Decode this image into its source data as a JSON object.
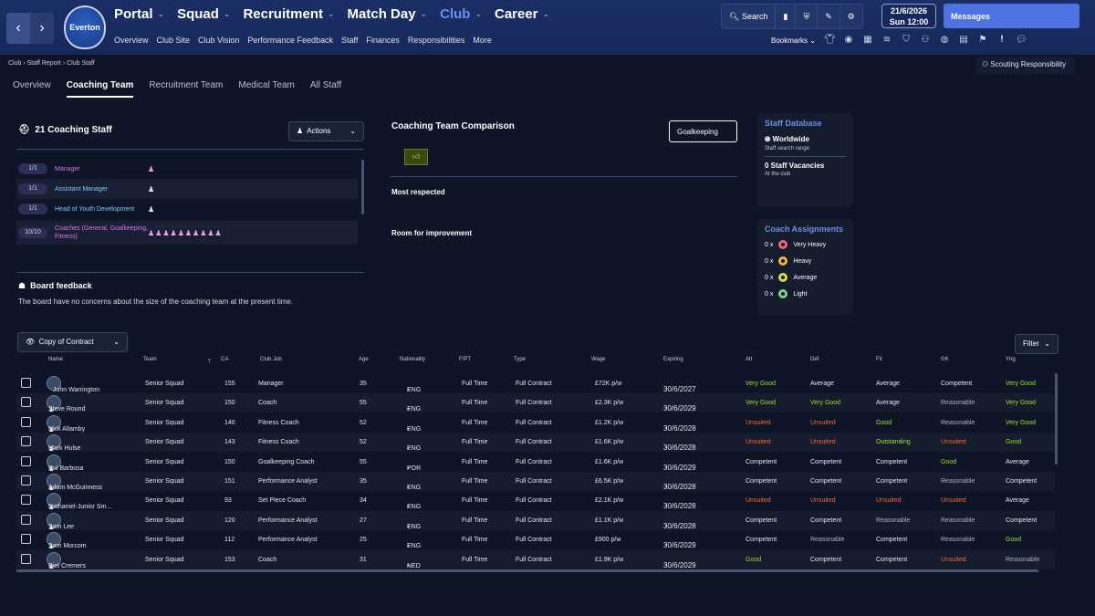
{
  "nav": {
    "back": "‹",
    "forward": "›",
    "club_crest_text": "Everton",
    "main": [
      {
        "label": "Portal",
        "active": false
      },
      {
        "label": "Squad",
        "active": false
      },
      {
        "label": "Recruitment",
        "active": false
      },
      {
        "label": "Match Day",
        "active": false
      },
      {
        "label": "Club",
        "active": true
      },
      {
        "label": "Career",
        "active": false
      }
    ],
    "sub": [
      "Overview",
      "Club Site",
      "Club Vision",
      "Performance Feedback",
      "Staff",
      "Finances",
      "Responsibilities",
      "More"
    ],
    "search_label": "Search",
    "date": "21/6/2026",
    "day": "Sun",
    "time": "12:00",
    "messages_label": "Messages",
    "bookmarks_label": "Bookmarks"
  },
  "breadcrumbs": [
    "Club",
    "Staff Report",
    "Club Staff"
  ],
  "scouting_responsibility": "Scouting Responsibility",
  "tabs": [
    "Overview",
    "Coaching Team",
    "Recruitment Team",
    "Medical Team",
    "All Staff"
  ],
  "active_tab": "Coaching Team",
  "coaching": {
    "title": "21 Coaching Staff",
    "actions_label": "Actions",
    "roles": [
      {
        "count": "1/1",
        "name": "Manager",
        "icons": "♟"
      },
      {
        "count": "1/1",
        "name": "Assistant Manager",
        "icons": "♟"
      },
      {
        "count": "1/1",
        "name": "Head of Youth Development",
        "icons": "♟"
      },
      {
        "count": "10/10",
        "name": "Coaches (General, Goalkeeping, Fitness)",
        "icons": "♟♟♟♟♟♟♟♟♟♟"
      }
    ],
    "board_title": "Board feedback",
    "board_text": "The board have no concerns about the size of the coaching team at the present time."
  },
  "comparison": {
    "title": "Coaching Team Comparison",
    "selected": "Goalkeeping",
    "most_respected": "Most respected",
    "room_for_improvement": "Room for improvement"
  },
  "staff_database": {
    "title": "Staff Database",
    "scope": "Worldwide",
    "scope_sub": "Staff search range",
    "vacancies": "0 Staff Vacancies",
    "vacancies_sub": "At the club"
  },
  "coach_assignments": {
    "title": "Coach Assignments",
    "items": [
      {
        "count": "0 x",
        "label": "Very Heavy",
        "color": "#f0647a"
      },
      {
        "count": "0 x",
        "label": "Heavy",
        "color": "#f3b43a"
      },
      {
        "count": "0 x",
        "label": "Average",
        "color": "#d5d94a"
      },
      {
        "count": "0 x",
        "label": "Light",
        "color": "#7fd08a"
      }
    ]
  },
  "table": {
    "view_label": "Copy of Contract",
    "filter_label": "Filter",
    "columns": [
      "Name",
      "Team",
      "CA",
      "Club Job",
      "Age",
      "Nationality",
      "F/PT",
      "Type",
      "Wage",
      "Expiring",
      "Att",
      "Def",
      "Fit",
      "GK",
      "Yng"
    ],
    "rows": [
      {
        "name": "John Warrington",
        "team": "Senior Squad",
        "ca": "155",
        "job": "Manager",
        "age": "35",
        "nat": "ENG",
        "fpt": "Full Time",
        "type": "Full Contract",
        "wage": "£72K p/w",
        "exp": "30/6/2027",
        "att": [
          "Very Good",
          "vg"
        ],
        "def": [
          "Average",
          "av2"
        ],
        "fit": [
          "Average",
          "av2"
        ],
        "gk": [
          "Competent",
          "cp"
        ],
        "yng": [
          "Very Good",
          "vg"
        ]
      },
      {
        "name": "Steve Round",
        "team": "Senior Squad",
        "ca": "150",
        "job": "Coach",
        "age": "55",
        "nat": "ENG",
        "fpt": "Full Time",
        "type": "Full Contract",
        "wage": "£2.3K p/w",
        "exp": "30/6/2029",
        "att": [
          "Very Good",
          "vg"
        ],
        "def": [
          "Very Good",
          "vg"
        ],
        "fit": [
          "Average",
          "av2"
        ],
        "gk": [
          "Reasonable",
          "re"
        ],
        "yng": [
          "Very Good",
          "vg"
        ]
      },
      {
        "name": "Nick Allamby",
        "team": "Senior Squad",
        "ca": "140",
        "job": "Fitness Coach",
        "age": "52",
        "nat": "ENG",
        "fpt": "Full Time",
        "type": "Full Contract",
        "wage": "£1.2K p/w",
        "exp": "30/6/2028",
        "att": [
          "Unsuited",
          "un"
        ],
        "def": [
          "Unsuited",
          "un"
        ],
        "fit": [
          "Good",
          "gd"
        ],
        "gk": [
          "Reasonable",
          "re"
        ],
        "yng": [
          "Very Good",
          "vg"
        ]
      },
      {
        "name": "Mark Hulse",
        "team": "Senior Squad",
        "ca": "143",
        "job": "Fitness Coach",
        "age": "52",
        "nat": "ENG",
        "fpt": "Full Time",
        "type": "Full Contract",
        "wage": "£1.6K p/w",
        "exp": "30/6/2028",
        "att": [
          "Unsuited",
          "un"
        ],
        "def": [
          "Unsuited",
          "un"
        ],
        "fit": [
          "Outstanding",
          "ou"
        ],
        "gk": [
          "Unsuited",
          "un"
        ],
        "yng": [
          "Good",
          "gd"
        ]
      },
      {
        "name": "Rui Barbosa",
        "team": "Senior Squad",
        "ca": "150",
        "job": "Goalkeeping Coach",
        "age": "55",
        "nat": "POR",
        "fpt": "Full Time",
        "type": "Full Contract",
        "wage": "£1.6K p/w",
        "exp": "30/6/2029",
        "att": [
          "Competent",
          "cp"
        ],
        "def": [
          "Competent",
          "cp"
        ],
        "fit": [
          "Competent",
          "cp"
        ],
        "gk": [
          "Good",
          "gd"
        ],
        "yng": [
          "Average",
          "av2"
        ]
      },
      {
        "name": "Adam McGuinness",
        "team": "Senior Squad",
        "ca": "151",
        "job": "Performance Analyst",
        "age": "35",
        "nat": "ENG",
        "fpt": "Full Time",
        "type": "Full Contract",
        "wage": "£6.5K p/w",
        "exp": "30/6/2028",
        "att": [
          "Competent",
          "cp"
        ],
        "def": [
          "Competent",
          "cp"
        ],
        "fit": [
          "Competent",
          "cp"
        ],
        "gk": [
          "Reasonable",
          "re"
        ],
        "yng": [
          "Competent",
          "cp"
        ]
      },
      {
        "name": "Nathaniel-Junior Sm...",
        "team": "Senior Squad",
        "ca": "93",
        "job": "Set Piece Coach",
        "age": "34",
        "nat": "ENG",
        "fpt": "Full Time",
        "type": "Full Contract",
        "wage": "£2.1K p/w",
        "exp": "30/6/2028",
        "att": [
          "Unsuited",
          "un"
        ],
        "def": [
          "Unsuited",
          "un"
        ],
        "fit": [
          "Unsuited",
          "un"
        ],
        "gk": [
          "Unsuited",
          "un"
        ],
        "yng": [
          "Average",
          "av2"
        ]
      },
      {
        "name": "Sam Lee",
        "team": "Senior Squad",
        "ca": "120",
        "job": "Performance Analyst",
        "age": "27",
        "nat": "ENG",
        "fpt": "Full Time",
        "type": "Full Contract",
        "wage": "£1.1K p/w",
        "exp": "30/6/2028",
        "att": [
          "Competent",
          "cp"
        ],
        "def": [
          "Competent",
          "cp"
        ],
        "fit": [
          "Reasonable",
          "re"
        ],
        "gk": [
          "Reasonable",
          "re"
        ],
        "yng": [
          "Competent",
          "cp"
        ]
      },
      {
        "name": "Sam Morcom",
        "team": "Senior Squad",
        "ca": "112",
        "job": "Performance Analyst",
        "age": "25",
        "nat": "ENG",
        "fpt": "Full Time",
        "type": "Full Contract",
        "wage": "£900 p/w",
        "exp": "30/6/2029",
        "att": [
          "Competent",
          "cp"
        ],
        "def": [
          "Reasonable",
          "re"
        ],
        "fit": [
          "Competent",
          "cp"
        ],
        "gk": [
          "Reasonable",
          "re"
        ],
        "yng": [
          "Good",
          "gd"
        ]
      },
      {
        "name": "Piet Cremers",
        "team": "Senior Squad",
        "ca": "153",
        "job": "Coach",
        "age": "31",
        "nat": "NED",
        "fpt": "Full Time",
        "type": "Full Contract",
        "wage": "£1.9K p/w",
        "exp": "30/6/2029",
        "att": [
          "Good",
          "gd"
        ],
        "def": [
          "Competent",
          "cp"
        ],
        "fit": [
          "Competent",
          "cp"
        ],
        "gk": [
          "Unsuited",
          "un"
        ],
        "yng": [
          "Reasonable",
          "re"
        ]
      }
    ]
  }
}
